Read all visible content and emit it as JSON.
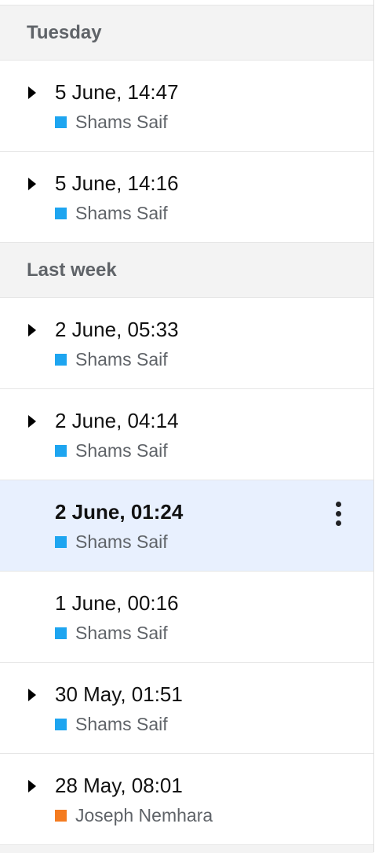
{
  "groups": [
    {
      "header": "Tuesday",
      "versions": [
        {
          "time": "5 June, 14:47",
          "author": "Shams Saif",
          "color": "#1ea5f0",
          "expandable": true,
          "selected": false
        },
        {
          "time": "5 June, 14:16",
          "author": "Shams Saif",
          "color": "#1ea5f0",
          "expandable": true,
          "selected": false
        }
      ]
    },
    {
      "header": "Last week",
      "versions": [
        {
          "time": "2 June, 05:33",
          "author": "Shams Saif",
          "color": "#1ea5f0",
          "expandable": true,
          "selected": false
        },
        {
          "time": "2 June, 04:14",
          "author": "Shams Saif",
          "color": "#1ea5f0",
          "expandable": true,
          "selected": false
        },
        {
          "time": "2 June, 01:24",
          "author": "Shams Saif",
          "color": "#1ea5f0",
          "expandable": false,
          "selected": true
        },
        {
          "time": "1 June, 00:16",
          "author": "Shams Saif",
          "color": "#1ea5f0",
          "expandable": false,
          "selected": false
        },
        {
          "time": "30 May, 01:51",
          "author": "Shams Saif",
          "color": "#1ea5f0",
          "expandable": true,
          "selected": false
        },
        {
          "time": "28 May, 08:01",
          "author": "Joseph Nemhara",
          "color": "#f47b20",
          "expandable": true,
          "selected": false
        }
      ]
    }
  ],
  "icons": {
    "expander": "triangle-right-icon",
    "more": "more-vert-icon",
    "author_swatch": "author-color-swatch"
  }
}
